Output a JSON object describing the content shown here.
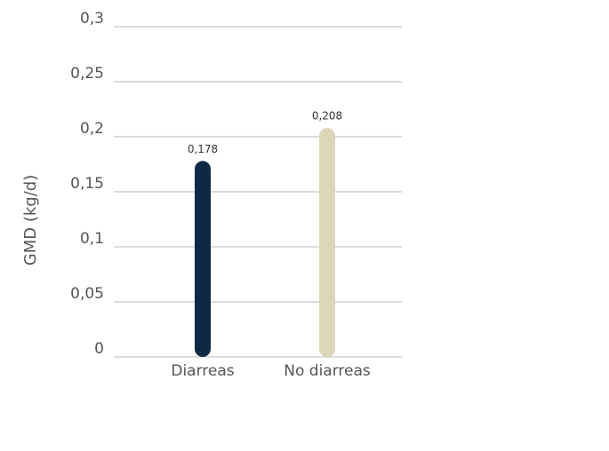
{
  "chart_data": {
    "type": "bar",
    "y_label": "GMD (kg/d)",
    "categories": [
      "Diarreas",
      "No diarreas"
    ],
    "values": [
      0.178,
      0.208
    ],
    "value_labels": [
      "0,178",
      "0,208"
    ],
    "colors": [
      "#0d2a45",
      "#ddd6b8"
    ],
    "ylim": [
      0,
      0.3
    ],
    "yticks": [
      0,
      {
        "value": 0.05,
        "label": "0,05"
      },
      {
        "value": 0.1,
        "label": "0,1"
      },
      {
        "value": 0.15,
        "label": "0,15"
      },
      {
        "value": 0.2,
        "label": "0,2"
      },
      {
        "value": 0.25,
        "label": "0,25"
      },
      {
        "value": 0.3,
        "label": "0,3"
      }
    ],
    "grid": true
  }
}
